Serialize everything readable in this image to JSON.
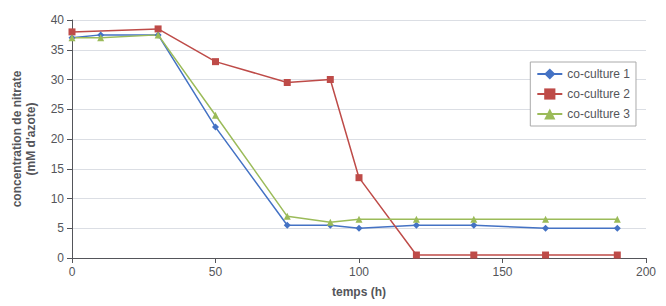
{
  "chart_data": {
    "type": "line",
    "xlabel": "temps (h)",
    "ylabel": "concentration de nitrate\n(mM d'azote)",
    "xlim": [
      0,
      200
    ],
    "ylim": [
      0,
      40
    ],
    "xticks": [
      0,
      50,
      100,
      150,
      200
    ],
    "yticks": [
      0,
      5,
      10,
      15,
      20,
      25,
      30,
      35,
      40
    ],
    "grid": true,
    "legend": "right",
    "series": [
      {
        "name": "co-culture 1",
        "color": "#4472C4",
        "marker": "diamond",
        "x": [
          0,
          10,
          30,
          50,
          75,
          90,
          100,
          120,
          140,
          165,
          190
        ],
        "values": [
          37.0,
          37.5,
          37.5,
          22.0,
          5.5,
          5.5,
          5.0,
          5.5,
          5.5,
          5.0,
          5.0
        ]
      },
      {
        "name": "co-culture 2",
        "color": "#BE4B48",
        "marker": "square",
        "x": [
          0,
          30,
          50,
          75,
          90,
          100,
          120,
          140,
          165,
          190
        ],
        "values": [
          38.0,
          38.5,
          33.0,
          29.5,
          30.0,
          13.5,
          0.5,
          0.5,
          0.5,
          0.5
        ]
      },
      {
        "name": "co-culture 3",
        "color": "#9BBB59",
        "marker": "triangle",
        "x": [
          0,
          10,
          30,
          50,
          75,
          90,
          100,
          120,
          140,
          165,
          190
        ],
        "values": [
          37.0,
          37.0,
          37.5,
          24.0,
          7.0,
          6.0,
          6.5,
          6.5,
          6.5,
          6.5,
          6.5
        ]
      }
    ]
  }
}
